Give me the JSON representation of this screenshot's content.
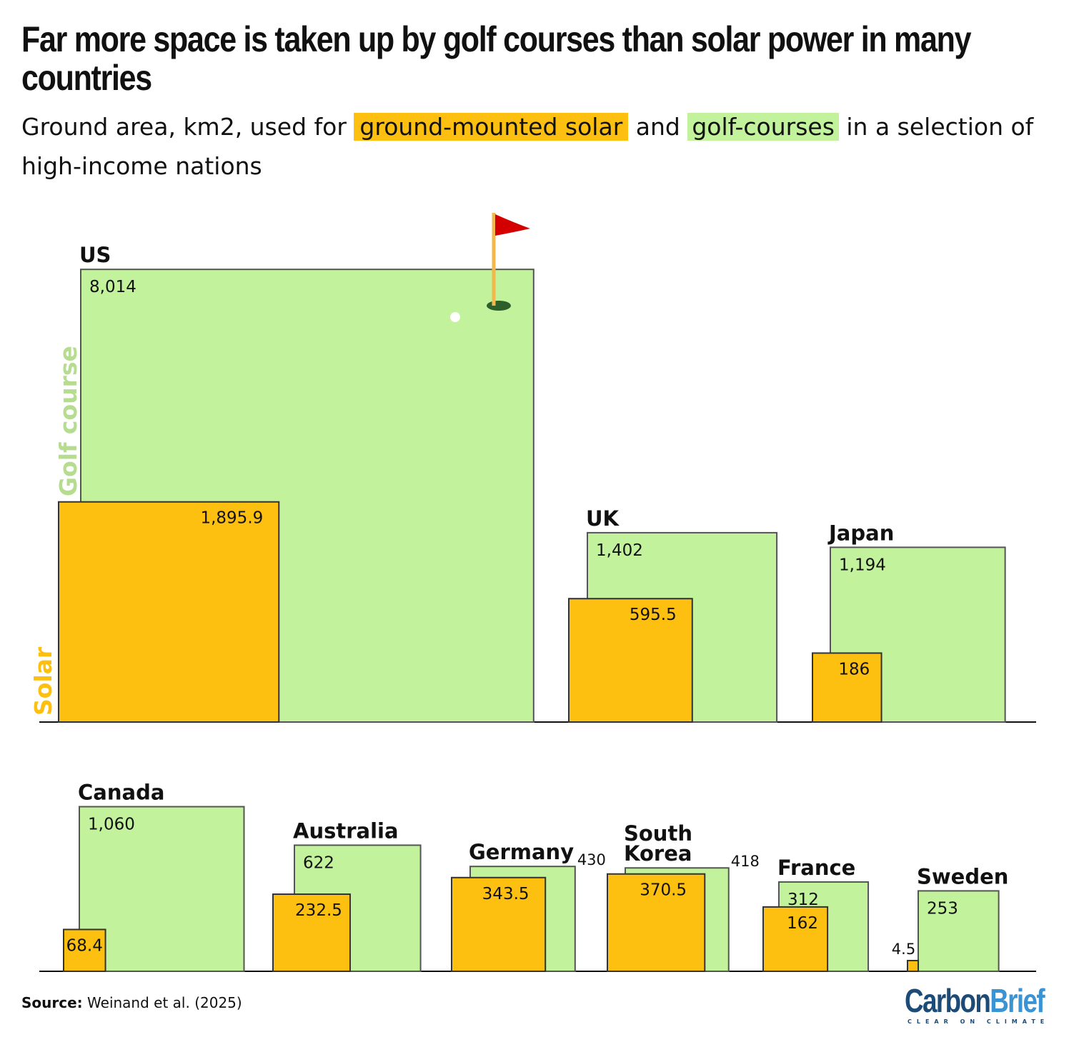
{
  "title": "Far more space is taken up by golf courses than solar power in many countries",
  "subtitle": {
    "pre": "Ground area, km2, used for",
    "solar": "ground-mounted solar",
    "mid": "and",
    "golf": "golf-courses",
    "post": "in a selection of high-income nations"
  },
  "source": {
    "label": "Source:",
    "text": "Weinand et al. (2025)"
  },
  "logo": {
    "part1": "Carbon",
    "part2": "Brief",
    "tagline": "CLEAR ON CLIMATE"
  },
  "colors": {
    "solar": "#fdc010",
    "golf": "#c2f29c",
    "golf_label": "#b5dc8f",
    "flag": "#d40000"
  },
  "chart_data": {
    "type": "proportional-area squares",
    "unit": "km2",
    "axis_labels": {
      "golf": "Golf course",
      "solar": "Solar"
    },
    "categories": [
      "US",
      "UK",
      "Japan",
      "Canada",
      "Australia",
      "Germany",
      "South Korea",
      "France",
      "Sweden"
    ],
    "series": [
      {
        "name": "Golf course",
        "values": [
          8014,
          1402,
          1194,
          1060,
          622,
          430,
          418,
          312,
          253
        ],
        "labels": [
          "8,014",
          "1,402",
          "1,194",
          "1,060",
          "622",
          "430",
          "418",
          "312",
          "253"
        ]
      },
      {
        "name": "Solar",
        "values": [
          1895.9,
          595.5,
          186,
          68.4,
          232.5,
          343.5,
          370.5,
          162,
          4.5
        ],
        "labels": [
          "1,895.9",
          "595.5",
          "186",
          "68.4",
          "232.5",
          "343.5",
          "370.5",
          "162",
          "4.5"
        ]
      }
    ]
  }
}
